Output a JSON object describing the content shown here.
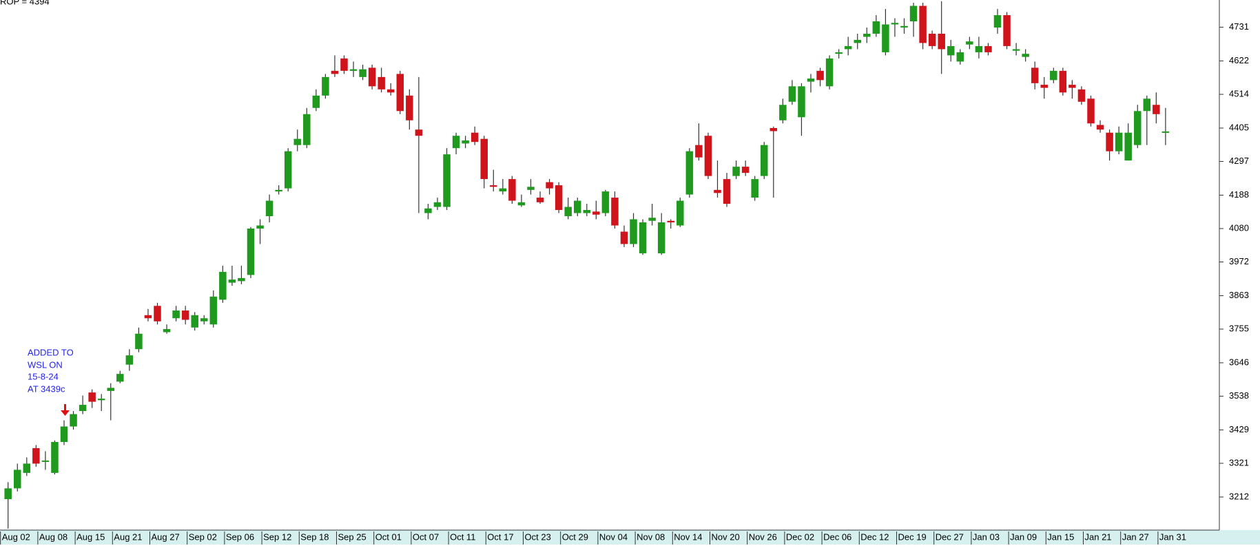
{
  "chart_data": {
    "type": "candlestick",
    "title": "ROP = 4394",
    "annotation": [
      "ADDED TO",
      "WSL ON",
      "15-8-24",
      "AT 3439c"
    ],
    "up_color": "#1f9a1f",
    "down_color": "#d0141c",
    "wick_color": "#333333",
    "ylim": [
      3105,
      4819
    ],
    "yticks": [
      3212,
      3321,
      3429,
      3538,
      3646,
      3755,
      3863,
      3972,
      4080,
      4188,
      4297,
      4405,
      4514,
      4622,
      4731
    ],
    "categories": [
      "Aug 02",
      null,
      null,
      null,
      "Aug 08",
      null,
      null,
      null,
      "Aug 15",
      null,
      null,
      null,
      "Aug 21",
      null,
      null,
      null,
      "Aug 27",
      null,
      null,
      null,
      "Sep 02",
      null,
      null,
      null,
      "Sep 06",
      null,
      null,
      null,
      "Sep 12",
      null,
      null,
      null,
      "Sep 18",
      null,
      null,
      null,
      "Sep 25",
      null,
      null,
      null,
      "Oct 01",
      null,
      null,
      null,
      "Oct 07",
      null,
      null,
      null,
      "Oct 11",
      null,
      null,
      null,
      "Oct 17",
      null,
      null,
      null,
      "Oct 23",
      null,
      null,
      null,
      "Oct 29",
      null,
      null,
      null,
      "Nov 04",
      null,
      null,
      null,
      "Nov 08",
      null,
      null,
      null,
      "Nov 14",
      null,
      null,
      null,
      "Nov 20",
      null,
      null,
      null,
      "Nov 26",
      null,
      null,
      null,
      "Dec 02",
      null,
      null,
      null,
      "Dec 06",
      null,
      null,
      null,
      "Dec 12",
      null,
      null,
      null,
      "Dec 19",
      null,
      null,
      null,
      "Dec 27",
      null,
      null,
      null,
      "Jan 03",
      null,
      null,
      null,
      "Jan 09",
      null,
      null,
      null,
      "Jan 15",
      null,
      null,
      null,
      "Jan 21",
      null,
      null,
      null,
      "Jan 27",
      null,
      null,
      null,
      "Jan 31"
    ],
    "open": [
      3205,
      3240,
      3290,
      3370,
      3330,
      3290,
      3390,
      3440,
      3490,
      3550,
      3525,
      3555,
      3585,
      3640,
      3690,
      3800,
      3830,
      3745,
      3790,
      3815,
      3760,
      3780,
      3770,
      3850,
      3905,
      3910,
      3930,
      4080,
      4120,
      4200,
      4210,
      4350,
      4350,
      4470,
      4510,
      4590,
      4630,
      4590,
      4570,
      4600,
      4570,
      4530,
      4580,
      4510,
      4400,
      4130,
      4150,
      4150,
      4340,
      4355,
      4390,
      4370,
      4220,
      4200,
      4240,
      4155,
      4205,
      4180,
      4230,
      4220,
      4120,
      4130,
      4130,
      4135,
      4130,
      4180,
      4070,
      4030,
      4000,
      4105,
      4000,
      4105,
      4090,
      4190,
      4350,
      4380,
      4205,
      4240,
      4250,
      4280,
      4180,
      4250,
      4405,
      4430,
      4490,
      4440,
      4555,
      4590,
      4540,
      4645,
      4660,
      4680,
      4700,
      4710,
      4650,
      4740,
      4730,
      4750,
      4800,
      4710,
      4710,
      4640,
      4620,
      4675,
      4650,
      4670,
      4730,
      4770,
      4655,
      4635,
      4600,
      4545,
      4560,
      4590,
      4545,
      4530,
      4500,
      4415,
      4390,
      4330,
      4300,
      4350,
      4460,
      4480,
      4390
    ],
    "high": [
      3260,
      3320,
      3340,
      3380,
      3360,
      3395,
      3460,
      3490,
      3540,
      3560,
      3545,
      3580,
      3620,
      3690,
      3760,
      3820,
      3840,
      3770,
      3830,
      3830,
      3810,
      3800,
      3880,
      3960,
      3960,
      3960,
      4085,
      4110,
      4190,
      4220,
      4340,
      4400,
      4470,
      4530,
      4580,
      4640,
      4640,
      4620,
      4610,
      4610,
      4600,
      4550,
      4590,
      4530,
      4570,
      4160,
      4180,
      4340,
      4390,
      4380,
      4410,
      4380,
      4270,
      4240,
      4250,
      4190,
      4240,
      4200,
      4240,
      4230,
      4180,
      4180,
      4160,
      4170,
      4205,
      4200,
      4090,
      4130,
      4110,
      4160,
      4130,
      4110,
      4180,
      4340,
      4420,
      4390,
      4300,
      4260,
      4300,
      4300,
      4250,
      4360,
      4410,
      4500,
      4560,
      4550,
      4580,
      4600,
      4640,
      4660,
      4700,
      4710,
      4730,
      4770,
      4790,
      4760,
      4760,
      4810,
      4810,
      4720,
      4815,
      4690,
      4660,
      4700,
      4700,
      4680,
      4790,
      4780,
      4680,
      4660,
      4620,
      4570,
      4600,
      4600,
      4560,
      4540,
      4510,
      4430,
      4400,
      4410,
      4420,
      4480,
      4510,
      4520,
      4470
    ],
    "low": [
      3110,
      3230,
      3280,
      3310,
      3300,
      3285,
      3380,
      3430,
      3480,
      3500,
      3490,
      3460,
      3580,
      3620,
      3680,
      3780,
      3770,
      3740,
      3780,
      3770,
      3750,
      3770,
      3760,
      3840,
      3895,
      3900,
      3920,
      4030,
      4100,
      4190,
      4200,
      4330,
      4340,
      4460,
      4500,
      4570,
      4580,
      4570,
      4560,
      4530,
      4520,
      4510,
      4450,
      4400,
      4130,
      4110,
      4140,
      4140,
      4320,
      4340,
      4350,
      4210,
      4200,
      4190,
      4160,
      4150,
      4190,
      4160,
      4190,
      4130,
      4110,
      4120,
      4120,
      4110,
      4120,
      4080,
      4020,
      4020,
      3995,
      4090,
      3995,
      4080,
      4085,
      4180,
      4300,
      4240,
      4180,
      4150,
      4240,
      4250,
      4170,
      4240,
      4180,
      4420,
      4480,
      4380,
      4520,
      4540,
      4530,
      4630,
      4640,
      4660,
      4680,
      4700,
      4640,
      4700,
      4710,
      4700,
      4660,
      4660,
      4580,
      4620,
      4610,
      4660,
      4630,
      4640,
      4710,
      4660,
      4640,
      4620,
      4530,
      4500,
      4550,
      4510,
      4500,
      4480,
      4410,
      4390,
      4300,
      4320,
      4300,
      4340,
      4350,
      4420,
      4350
    ],
    "close": [
      3240,
      3300,
      3320,
      3320,
      3330,
      3390,
      3440,
      3480,
      3510,
      3520,
      3530,
      3565,
      3610,
      3670,
      3740,
      3790,
      3780,
      3755,
      3815,
      3785,
      3800,
      3790,
      3860,
      3940,
      3915,
      3920,
      4080,
      4090,
      4170,
      4205,
      4330,
      4370,
      4450,
      4510,
      4570,
      4580,
      4590,
      4595,
      4595,
      4540,
      4530,
      4520,
      4460,
      4430,
      4380,
      4145,
      4165,
      4320,
      4380,
      4365,
      4360,
      4240,
      4215,
      4210,
      4170,
      4165,
      4215,
      4165,
      4210,
      4140,
      4150,
      4170,
      4140,
      4125,
      4200,
      4090,
      4030,
      4110,
      4100,
      4115,
      4100,
      4100,
      4170,
      4330,
      4310,
      4250,
      4195,
      4160,
      4280,
      4260,
      4240,
      4350,
      4395,
      4480,
      4540,
      4540,
      4565,
      4560,
      4630,
      4650,
      4670,
      4690,
      4710,
      4750,
      4740,
      4745,
      4735,
      4800,
      4680,
      4670,
      4660,
      4670,
      4650,
      4685,
      4670,
      4650,
      4770,
      4670,
      4660,
      4645,
      4550,
      4535,
      4590,
      4520,
      4535,
      4490,
      4420,
      4400,
      4330,
      4390,
      4390,
      4460,
      4500,
      4450,
      4394
    ]
  }
}
